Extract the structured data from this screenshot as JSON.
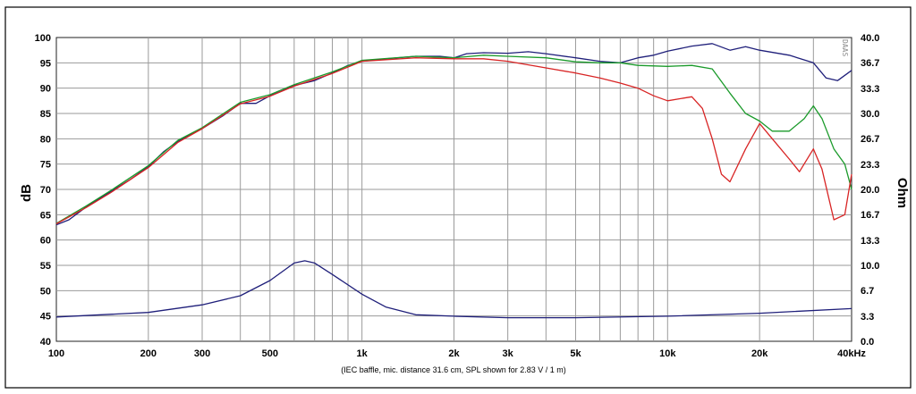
{
  "chart_data": {
    "type": "line",
    "x_scale": "log",
    "xlim": [
      100,
      40000
    ],
    "ylim_left": [
      40,
      100
    ],
    "ylim_right": [
      0.0,
      40.0
    ],
    "grid": true,
    "ylabel_left": "dB",
    "ylabel_right": "Ohm",
    "caption": "(IEC baffle, mic. distance 31.6 cm, SPL shown for 2.83 V / 1 m)",
    "watermark": "DAAS",
    "x_ticks": [
      {
        "value": 100,
        "label": "100"
      },
      {
        "value": 200,
        "label": "200"
      },
      {
        "value": 300,
        "label": "300"
      },
      {
        "value": 500,
        "label": "500"
      },
      {
        "value": 1000,
        "label": "1k"
      },
      {
        "value": 2000,
        "label": "2k"
      },
      {
        "value": 3000,
        "label": "3k"
      },
      {
        "value": 5000,
        "label": "5k"
      },
      {
        "value": 10000,
        "label": "10k"
      },
      {
        "value": 20000,
        "label": "20k"
      },
      {
        "value": 40000,
        "label": "40kHz"
      }
    ],
    "y_ticks_left": [
      {
        "value": 40,
        "label": "40"
      },
      {
        "value": 45,
        "label": "45"
      },
      {
        "value": 50,
        "label": "50"
      },
      {
        "value": 55,
        "label": "55"
      },
      {
        "value": 60,
        "label": "60"
      },
      {
        "value": 65,
        "label": "65"
      },
      {
        "value": 70,
        "label": "70"
      },
      {
        "value": 75,
        "label": "75"
      },
      {
        "value": 80,
        "label": "80"
      },
      {
        "value": 85,
        "label": "85"
      },
      {
        "value": 90,
        "label": "90"
      },
      {
        "value": 95,
        "label": "95"
      },
      {
        "value": 100,
        "label": "100"
      }
    ],
    "y_ticks_right": [
      {
        "value": 0.0,
        "label": "0.0"
      },
      {
        "value": 3.3,
        "label": "3.3"
      },
      {
        "value": 6.7,
        "label": "6.7"
      },
      {
        "value": 10.0,
        "label": "10.0"
      },
      {
        "value": 13.3,
        "label": "13.3"
      },
      {
        "value": 16.7,
        "label": "16.7"
      },
      {
        "value": 20.0,
        "label": "20.0"
      },
      {
        "value": 23.3,
        "label": "23.3"
      },
      {
        "value": 26.7,
        "label": "26.7"
      },
      {
        "value": 30.0,
        "label": "30.0"
      },
      {
        "value": 33.3,
        "label": "33.3"
      },
      {
        "value": 36.7,
        "label": "36.7"
      },
      {
        "value": 40.0,
        "label": "40.0"
      }
    ],
    "series": [
      {
        "color": "#1f1f7a",
        "axis": "left",
        "points": [
          [
            100,
            63
          ],
          [
            110,
            64
          ],
          [
            125,
            66.5
          ],
          [
            150,
            69.5
          ],
          [
            175,
            72
          ],
          [
            200,
            74.5
          ],
          [
            225,
            77.5
          ],
          [
            250,
            79.5
          ],
          [
            300,
            82
          ],
          [
            350,
            84.5
          ],
          [
            400,
            87
          ],
          [
            450,
            87
          ],
          [
            500,
            88.5
          ],
          [
            550,
            89.5
          ],
          [
            600,
            90.5
          ],
          [
            700,
            91.5
          ],
          [
            800,
            93
          ],
          [
            900,
            94.5
          ],
          [
            1000,
            95.3
          ],
          [
            1200,
            95.8
          ],
          [
            1500,
            96.3
          ],
          [
            1800,
            96.3
          ],
          [
            2000,
            96
          ],
          [
            2200,
            96.8
          ],
          [
            2500,
            97
          ],
          [
            3000,
            96.9
          ],
          [
            3500,
            97.2
          ],
          [
            4000,
            96.8
          ],
          [
            5000,
            96
          ],
          [
            6000,
            95.3
          ],
          [
            7000,
            95
          ],
          [
            8000,
            96
          ],
          [
            9000,
            96.5
          ],
          [
            10000,
            97.3
          ],
          [
            12000,
            98.3
          ],
          [
            14000,
            98.8
          ],
          [
            16000,
            97.5
          ],
          [
            18000,
            98.2
          ],
          [
            20000,
            97.5
          ],
          [
            25000,
            96.5
          ],
          [
            30000,
            95
          ],
          [
            33000,
            92
          ],
          [
            36000,
            91.5
          ],
          [
            40000,
            93.5
          ]
        ]
      },
      {
        "color": "#1a9a2a",
        "axis": "left",
        "points": [
          [
            100,
            63.3
          ],
          [
            125,
            66.7
          ],
          [
            150,
            69.7
          ],
          [
            200,
            74.7
          ],
          [
            250,
            79.7
          ],
          [
            300,
            82.2
          ],
          [
            400,
            87.2
          ],
          [
            500,
            88.7
          ],
          [
            600,
            90.7
          ],
          [
            800,
            93.2
          ],
          [
            1000,
            95.5
          ],
          [
            1500,
            96.3
          ],
          [
            2000,
            96
          ],
          [
            2500,
            96.5
          ],
          [
            3000,
            96.3
          ],
          [
            4000,
            96
          ],
          [
            5000,
            95.2
          ],
          [
            6000,
            95
          ],
          [
            7000,
            95
          ],
          [
            8000,
            94.5
          ],
          [
            10000,
            94.3
          ],
          [
            12000,
            94.5
          ],
          [
            14000,
            93.8
          ],
          [
            16000,
            89
          ],
          [
            18000,
            85
          ],
          [
            20000,
            83.5
          ],
          [
            22000,
            81.5
          ],
          [
            25000,
            81.5
          ],
          [
            28000,
            84
          ],
          [
            30000,
            86.5
          ],
          [
            32000,
            84
          ],
          [
            35000,
            78
          ],
          [
            38000,
            75
          ],
          [
            40000,
            70
          ]
        ]
      },
      {
        "color": "#d82424",
        "axis": "left",
        "points": [
          [
            100,
            63.2
          ],
          [
            125,
            66.4
          ],
          [
            150,
            69.3
          ],
          [
            200,
            74.3
          ],
          [
            250,
            79.3
          ],
          [
            300,
            82
          ],
          [
            400,
            86.9
          ],
          [
            500,
            88.4
          ],
          [
            600,
            90.4
          ],
          [
            800,
            92.9
          ],
          [
            1000,
            95.3
          ],
          [
            1500,
            96
          ],
          [
            2000,
            95.8
          ],
          [
            2500,
            95.8
          ],
          [
            3000,
            95.3
          ],
          [
            4000,
            94
          ],
          [
            5000,
            93
          ],
          [
            6000,
            92
          ],
          [
            7000,
            91
          ],
          [
            8000,
            90
          ],
          [
            9000,
            88.5
          ],
          [
            10000,
            87.5
          ],
          [
            12000,
            88.3
          ],
          [
            13000,
            86
          ],
          [
            14000,
            80
          ],
          [
            15000,
            73
          ],
          [
            16000,
            71.5
          ],
          [
            18000,
            78
          ],
          [
            20000,
            83
          ],
          [
            22000,
            80
          ],
          [
            25000,
            76
          ],
          [
            27000,
            73.5
          ],
          [
            30000,
            78
          ],
          [
            32000,
            74
          ],
          [
            35000,
            64
          ],
          [
            38000,
            65
          ],
          [
            40000,
            73
          ]
        ]
      },
      {
        "color": "#1f1f7a",
        "axis": "right",
        "points": [
          [
            100,
            3.2
          ],
          [
            200,
            3.8
          ],
          [
            300,
            4.8
          ],
          [
            400,
            6
          ],
          [
            500,
            8
          ],
          [
            600,
            10.3
          ],
          [
            650,
            10.6
          ],
          [
            700,
            10.3
          ],
          [
            800,
            8.8
          ],
          [
            1000,
            6.2
          ],
          [
            1200,
            4.5
          ],
          [
            1500,
            3.5
          ],
          [
            2000,
            3.3
          ],
          [
            3000,
            3.1
          ],
          [
            5000,
            3.1
          ],
          [
            10000,
            3.3
          ],
          [
            20000,
            3.7
          ],
          [
            40000,
            4.3
          ]
        ]
      }
    ]
  }
}
